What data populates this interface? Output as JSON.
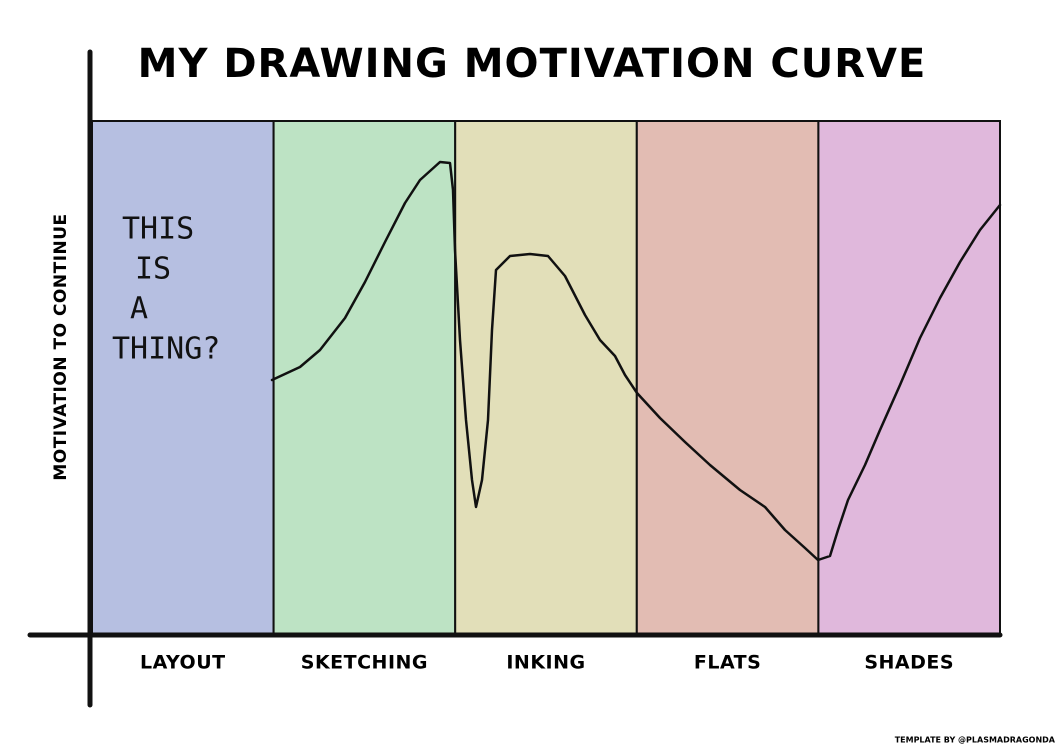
{
  "title": "MY DRAWING MOTIVATION CURVE",
  "y_axis_label": "MOTIVATION TO CONTINUE",
  "stages": [
    {
      "label": "LAYOUT",
      "color": "#b6bfe1"
    },
    {
      "label": "SKETCHING",
      "color": "#bde3c4"
    },
    {
      "label": "INKING",
      "color": "#e2dfb9"
    },
    {
      "label": "FLATS",
      "color": "#e2bcb3"
    },
    {
      "label": "SHADES",
      "color": "#e0b8dc"
    }
  ],
  "annotation": [
    "THIS",
    "IS",
    "A",
    "THING?"
  ],
  "credit": "TEMPLATE BY @PLASMADRAGONDA"
}
